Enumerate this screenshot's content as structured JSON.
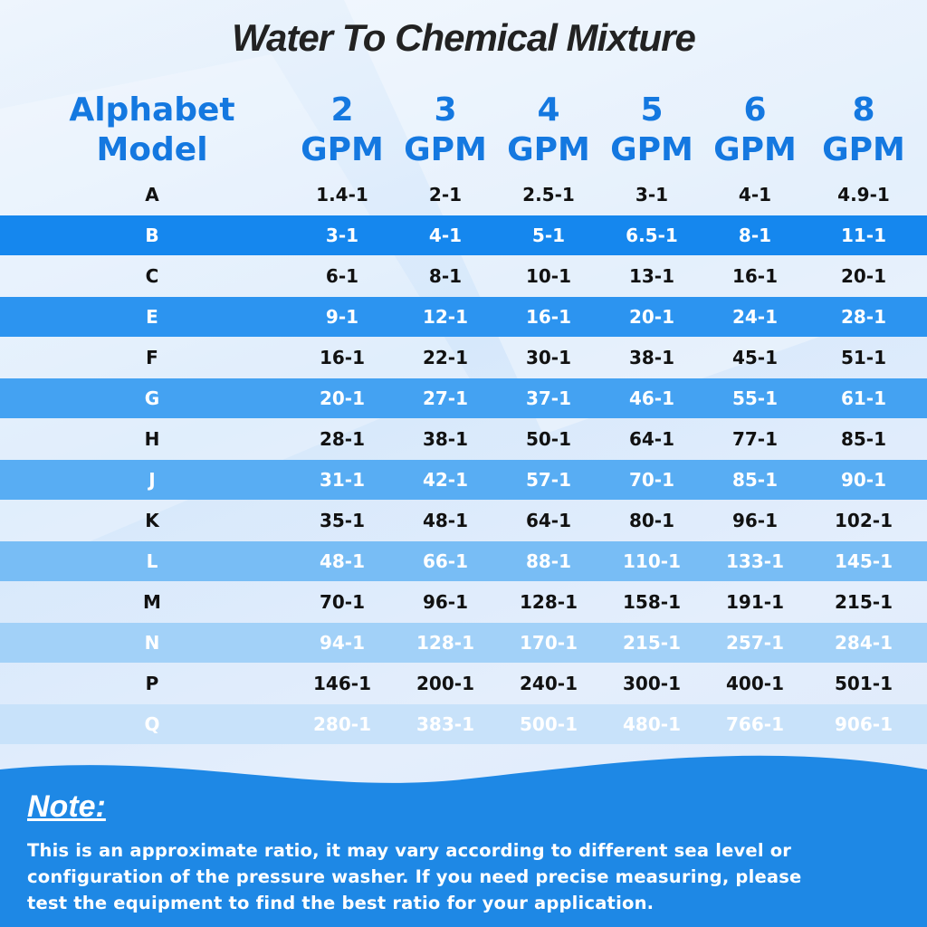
{
  "title": "Water To Chemical Mixture",
  "table": {
    "header": [
      [
        "Alphabet",
        "Model"
      ],
      [
        "2",
        "GPM"
      ],
      [
        "3",
        "GPM"
      ],
      [
        "4",
        "GPM"
      ],
      [
        "5",
        "GPM"
      ],
      [
        "6",
        "GPM"
      ],
      [
        "8",
        "GPM"
      ]
    ],
    "rows": [
      [
        "A",
        "1.4-1",
        "2-1",
        "2.5-1",
        "3-1",
        "4-1",
        "4.9-1"
      ],
      [
        "B",
        "3-1",
        "4-1",
        "5-1",
        "6.5-1",
        "8-1",
        "11-1"
      ],
      [
        "C",
        "6-1",
        "8-1",
        "10-1",
        "13-1",
        "16-1",
        "20-1"
      ],
      [
        "E",
        "9-1",
        "12-1",
        "16-1",
        "20-1",
        "24-1",
        "28-1"
      ],
      [
        "F",
        "16-1",
        "22-1",
        "30-1",
        "38-1",
        "45-1",
        "51-1"
      ],
      [
        "G",
        "20-1",
        "27-1",
        "37-1",
        "46-1",
        "55-1",
        "61-1"
      ],
      [
        "H",
        "28-1",
        "38-1",
        "50-1",
        "64-1",
        "77-1",
        "85-1"
      ],
      [
        "J",
        "31-1",
        "42-1",
        "57-1",
        "70-1",
        "85-1",
        "90-1"
      ],
      [
        "K",
        "35-1",
        "48-1",
        "64-1",
        "80-1",
        "96-1",
        "102-1"
      ],
      [
        "L",
        "48-1",
        "66-1",
        "88-1",
        "110-1",
        "133-1",
        "145-1"
      ],
      [
        "M",
        "70-1",
        "96-1",
        "128-1",
        "158-1",
        "191-1",
        "215-1"
      ],
      [
        "N",
        "94-1",
        "128-1",
        "170-1",
        "215-1",
        "257-1",
        "284-1"
      ],
      [
        "P",
        "146-1",
        "200-1",
        "240-1",
        "300-1",
        "400-1",
        "501-1"
      ],
      [
        "Q",
        "280-1",
        "383-1",
        "500-1",
        "480-1",
        "766-1",
        "906-1"
      ]
    ]
  },
  "note": {
    "title": "Note:",
    "lines": [
      "This is an approximate ratio, it may vary according to different sea level or",
      "configuration of the pressure washer. If you need precise measuring, please",
      "test the equipment to find the best ratio for your application."
    ]
  }
}
